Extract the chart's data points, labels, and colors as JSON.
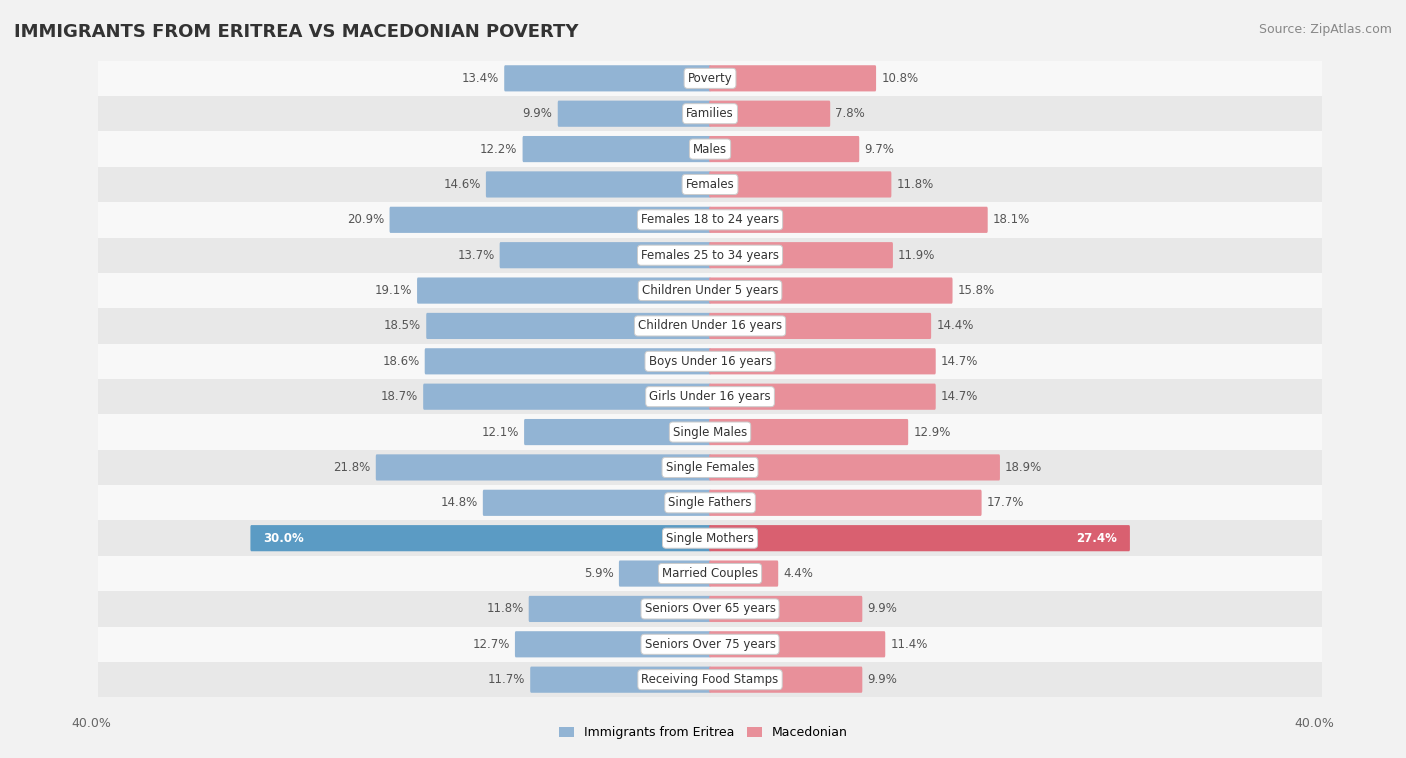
{
  "title": "IMMIGRANTS FROM ERITREA VS MACEDONIAN POVERTY",
  "source": "Source: ZipAtlas.com",
  "categories": [
    "Poverty",
    "Families",
    "Males",
    "Females",
    "Females 18 to 24 years",
    "Females 25 to 34 years",
    "Children Under 5 years",
    "Children Under 16 years",
    "Boys Under 16 years",
    "Girls Under 16 years",
    "Single Males",
    "Single Females",
    "Single Fathers",
    "Single Mothers",
    "Married Couples",
    "Seniors Over 65 years",
    "Seniors Over 75 years",
    "Receiving Food Stamps"
  ],
  "eritrea_values": [
    13.4,
    9.9,
    12.2,
    14.6,
    20.9,
    13.7,
    19.1,
    18.5,
    18.6,
    18.7,
    12.1,
    21.8,
    14.8,
    30.0,
    5.9,
    11.8,
    12.7,
    11.7
  ],
  "macedonian_values": [
    10.8,
    7.8,
    9.7,
    11.8,
    18.1,
    11.9,
    15.8,
    14.4,
    14.7,
    14.7,
    12.9,
    18.9,
    17.7,
    27.4,
    4.4,
    9.9,
    11.4,
    9.9
  ],
  "eritrea_color": "#92b4d4",
  "macedonian_color": "#e8909a",
  "bar_height": 0.62,
  "max_value": 40.0,
  "background_color": "#f2f2f2",
  "row_even_color": "#f8f8f8",
  "row_odd_color": "#e8e8e8",
  "value_color": "#555555",
  "highlight_row": 13,
  "highlight_eritrea_color": "#5b9bc4",
  "highlight_macedonian_color": "#d96070",
  "title_fontsize": 13,
  "source_fontsize": 9,
  "bar_fontsize": 8.5,
  "label_fontsize": 8.5
}
